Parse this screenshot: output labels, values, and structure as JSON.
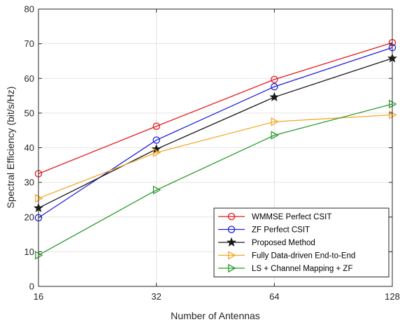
{
  "chart_data": {
    "type": "line",
    "x": [
      16,
      32,
      64,
      128
    ],
    "xticks": [
      "16",
      "32",
      "64",
      "128"
    ],
    "xlim": [
      16,
      128
    ],
    "xscale": "log2",
    "ylim": [
      0,
      80
    ],
    "yticks": [
      0,
      10,
      20,
      30,
      40,
      50,
      60,
      70,
      80
    ],
    "xlabel": "Number of Antennas",
    "ylabel": "Spectral Efficiency (bit/s/Hz)",
    "grid": true,
    "legend_position": "bottom-right",
    "series": [
      {
        "name": "WMMSE Perfect CSIT",
        "values": [
          32.5,
          46.2,
          59.7,
          70.3
        ],
        "color": "#e41a1c",
        "marker": "circle"
      },
      {
        "name": "ZF Perfect CSIT",
        "values": [
          19.8,
          42.2,
          57.6,
          68.9
        ],
        "color": "#1f1fe0",
        "marker": "circle"
      },
      {
        "name": "Proposed Method",
        "values": [
          22.6,
          39.6,
          54.6,
          65.8
        ],
        "color": "#1a1a1a",
        "marker": "star"
      },
      {
        "name": "Fully Data-driven End-to-End",
        "values": [
          25.4,
          38.6,
          47.5,
          49.5
        ],
        "color": "#f5a623",
        "marker": "triangle-right"
      },
      {
        "name": "LS + Channel Mapping + ZF",
        "values": [
          9.0,
          27.8,
          43.6,
          52.6
        ],
        "color": "#2a9a2a",
        "marker": "triangle-right"
      }
    ]
  }
}
